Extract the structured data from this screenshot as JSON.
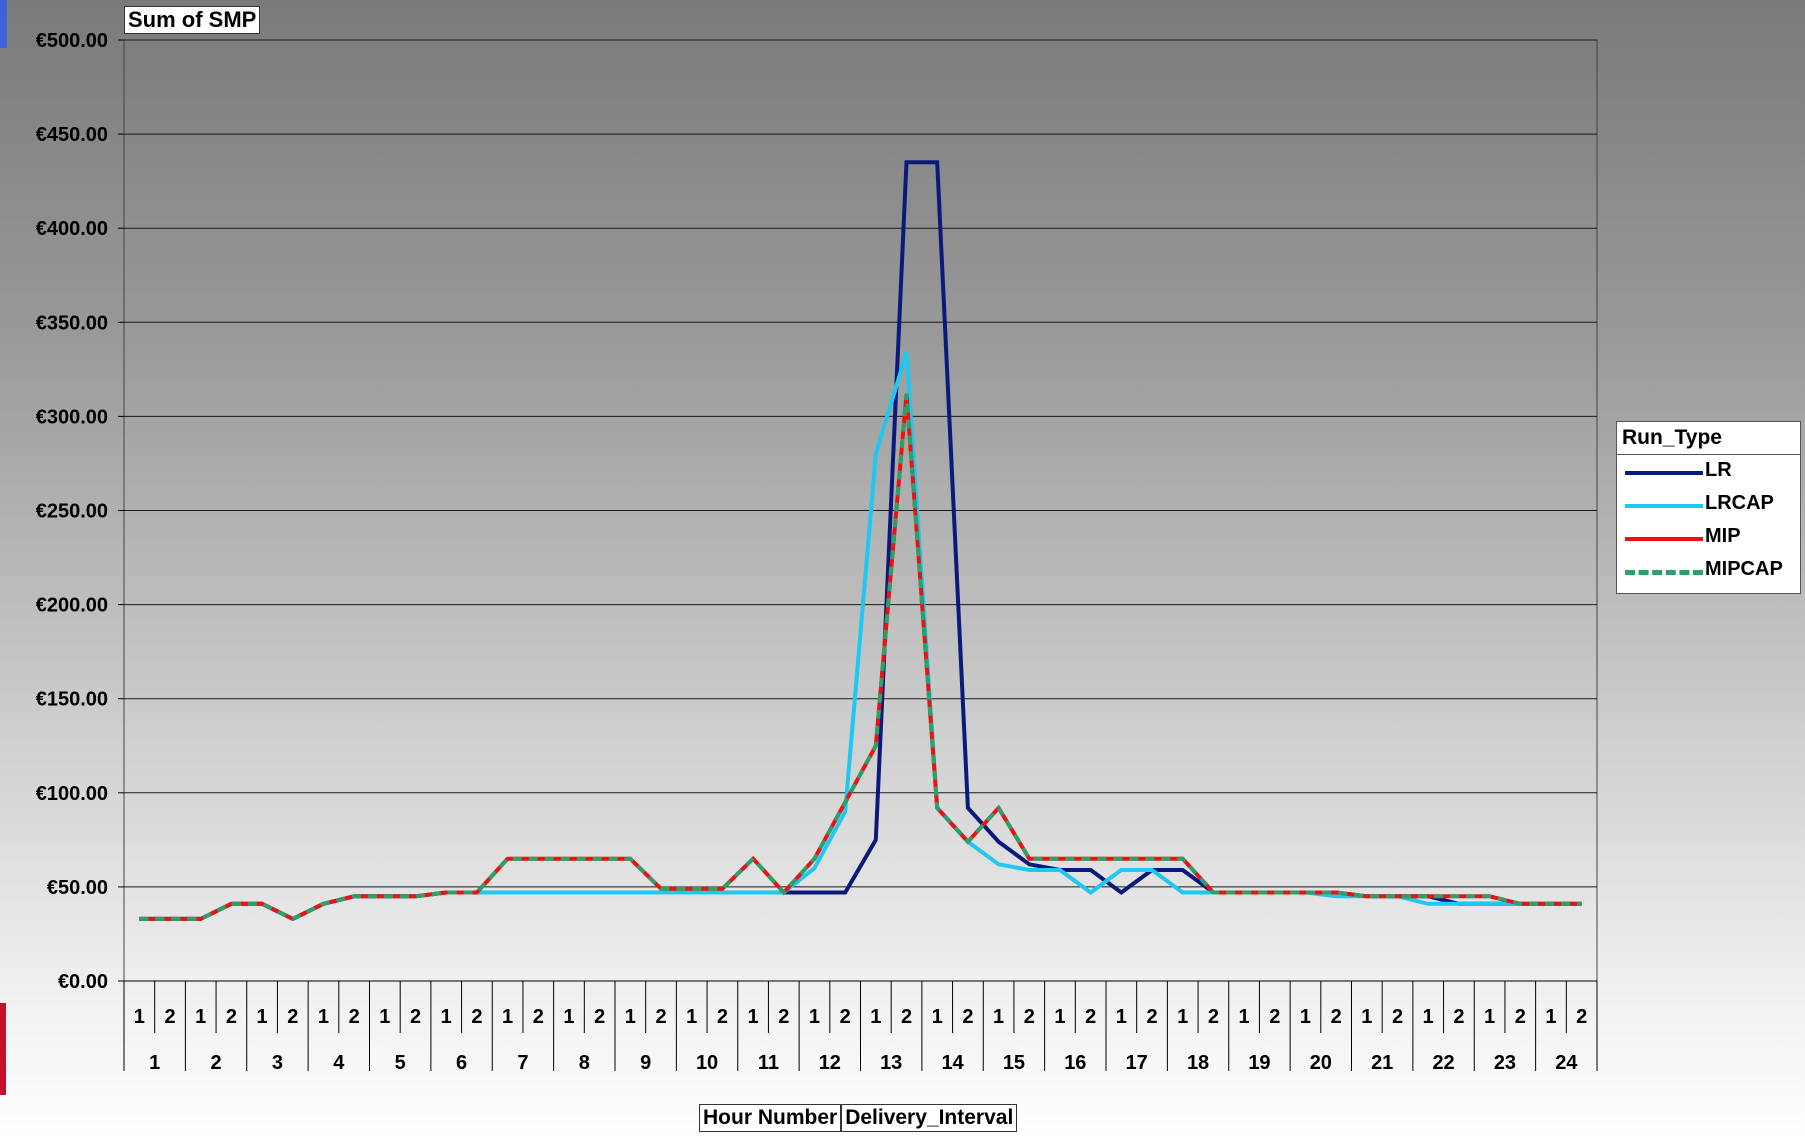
{
  "title": "Sum of SMP",
  "legend": {
    "title": "Run_Type",
    "items": [
      {
        "name": "LR",
        "color": "#0a1a7a",
        "style": "solid"
      },
      {
        "name": "LRCAP",
        "color": "#1ec8f0",
        "style": "solid"
      },
      {
        "name": "MIP",
        "color": "#ee1111",
        "style": "solid"
      },
      {
        "name": "MIPCAP",
        "color": "#2e9e6a",
        "style": "dashed"
      }
    ]
  },
  "axis_footer": [
    "Hour Number",
    "Delivery_Interval"
  ],
  "chart_data": {
    "type": "line",
    "title": "Sum of SMP",
    "ylim": [
      0,
      500
    ],
    "y_ticks": [
      "€0.00",
      "€50.00",
      "€100.00",
      "€150.00",
      "€200.00",
      "€250.00",
      "€300.00",
      "€350.00",
      "€400.00",
      "€450.00",
      "€500.00"
    ],
    "y_tick_values": [
      0,
      50,
      100,
      150,
      200,
      250,
      300,
      350,
      400,
      450,
      500
    ],
    "grid": true,
    "legend_position": "right",
    "hours": [
      "1",
      "2",
      "3",
      "4",
      "5",
      "6",
      "7",
      "8",
      "9",
      "10",
      "11",
      "12",
      "13",
      "14",
      "15",
      "16",
      "17",
      "18",
      "19",
      "20",
      "21",
      "22",
      "23",
      "24"
    ],
    "intervals": [
      "1",
      "2"
    ],
    "series": [
      {
        "name": "LR",
        "values": [
          33,
          33,
          33,
          41,
          41,
          33,
          41,
          45,
          45,
          45,
          47,
          47,
          47,
          47,
          47,
          47,
          47,
          47,
          47,
          47,
          47,
          47,
          47,
          47,
          75,
          435,
          435,
          92,
          74,
          62,
          59,
          59,
          47,
          59,
          59,
          47,
          47,
          47,
          47,
          47,
          45,
          45,
          45,
          41,
          41,
          41,
          41,
          41
        ]
      },
      {
        "name": "LRCAP",
        "values": [
          33,
          33,
          33,
          41,
          41,
          33,
          41,
          45,
          45,
          45,
          47,
          47,
          47,
          47,
          47,
          47,
          47,
          47,
          47,
          47,
          47,
          47,
          60,
          90,
          280,
          334,
          92,
          74,
          62,
          59,
          59,
          47,
          59,
          59,
          47,
          47,
          47,
          47,
          47,
          45,
          45,
          45,
          41,
          41,
          41,
          41,
          41,
          41
        ]
      },
      {
        "name": "MIP",
        "values": [
          33,
          33,
          33,
          41,
          41,
          33,
          41,
          45,
          45,
          45,
          47,
          47,
          65,
          65,
          65,
          65,
          65,
          49,
          49,
          49,
          65,
          47,
          65,
          95,
          125,
          312,
          92,
          74,
          92,
          65,
          65,
          65,
          65,
          65,
          65,
          47,
          47,
          47,
          47,
          47,
          45,
          45,
          45,
          45,
          45,
          41,
          41,
          41
        ]
      },
      {
        "name": "MIPCAP",
        "values": [
          33,
          33,
          33,
          41,
          41,
          33,
          41,
          45,
          45,
          45,
          47,
          47,
          65,
          65,
          65,
          65,
          65,
          49,
          49,
          49,
          65,
          47,
          65,
          95,
          125,
          312,
          92,
          74,
          92,
          65,
          65,
          65,
          65,
          65,
          65,
          47,
          47,
          47,
          47,
          47,
          45,
          45,
          45,
          45,
          45,
          41,
          41,
          41
        ]
      }
    ]
  }
}
